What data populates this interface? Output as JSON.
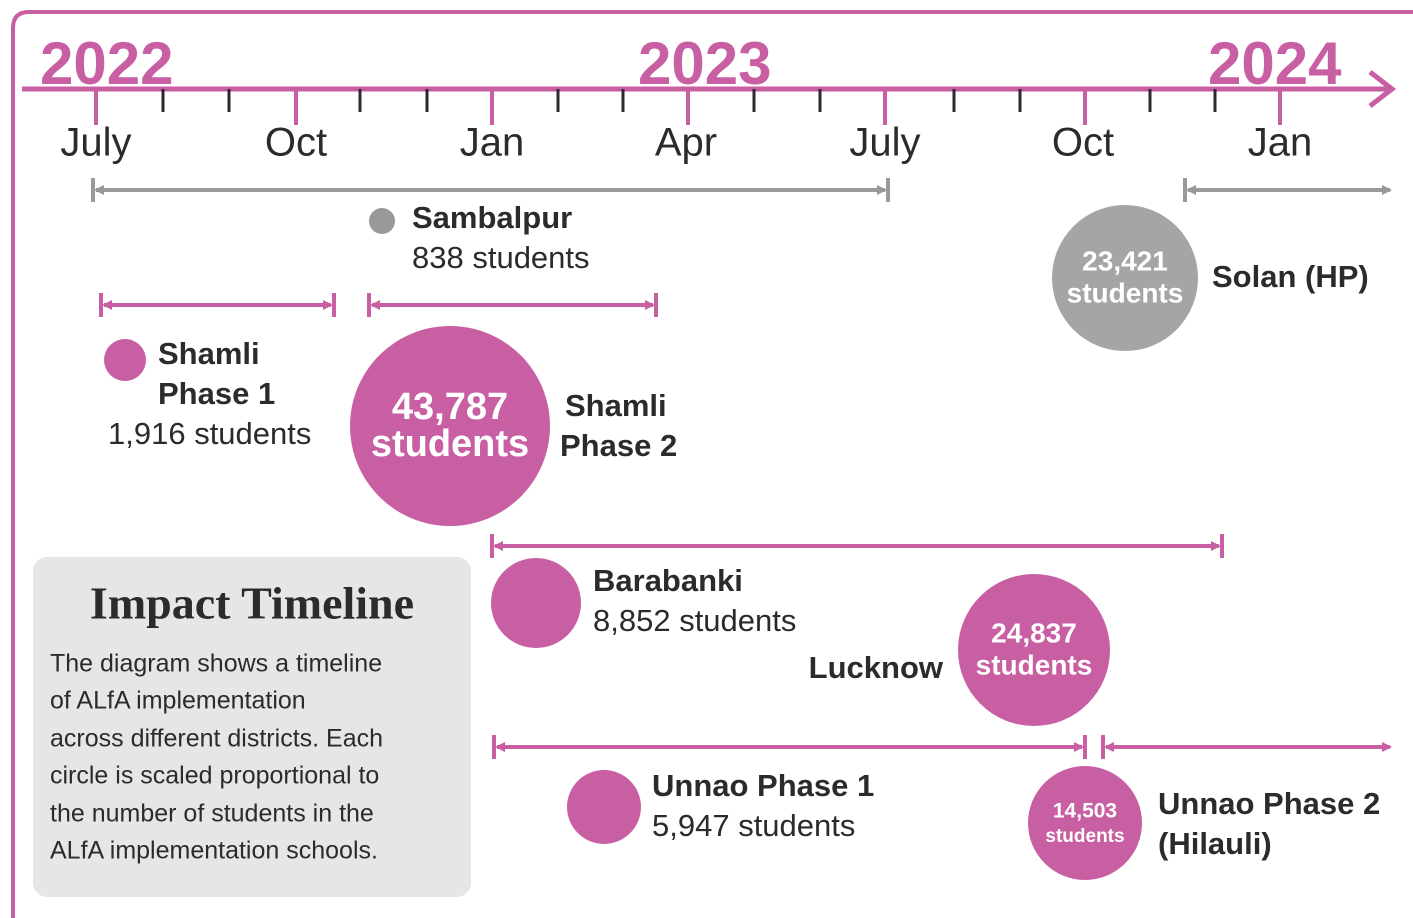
{
  "axis": {
    "years": [
      "2022",
      "2023",
      "2024"
    ],
    "months": [
      "July",
      "Oct",
      "Jan",
      "Apr",
      "July",
      "Oct",
      "Jan"
    ]
  },
  "programs": [
    {
      "name": [
        "Sambalpur"
      ],
      "students": "838 students"
    },
    {
      "name": [
        "Solan (HP)"
      ],
      "circle": [
        "23,421",
        "students"
      ]
    },
    {
      "name": [
        "Shamli",
        "Phase 1"
      ],
      "students": "1,916 students"
    },
    {
      "name": [
        "Shamli",
        "Phase 2"
      ],
      "circle": [
        "43,787",
        "students"
      ]
    },
    {
      "name": [
        "Barabanki"
      ],
      "students": "8,852 students"
    },
    {
      "name": [
        "Lucknow"
      ],
      "circle": [
        "24,837",
        "students"
      ]
    },
    {
      "name": [
        "Unnao Phase 1"
      ],
      "students": "5,947 students"
    },
    {
      "name": [
        "Unnao Phase 2",
        "(Hilauli)"
      ],
      "circle": [
        "14,503",
        "students"
      ]
    }
  ],
  "info": {
    "title": "Impact Timeline",
    "lines": [
      "The diagram shows a timeline",
      "of ALfA implementation",
      "across different districts. Each",
      "circle is scaled proportional to",
      "the number of students in the",
      "ALfA implementation schools."
    ]
  }
}
